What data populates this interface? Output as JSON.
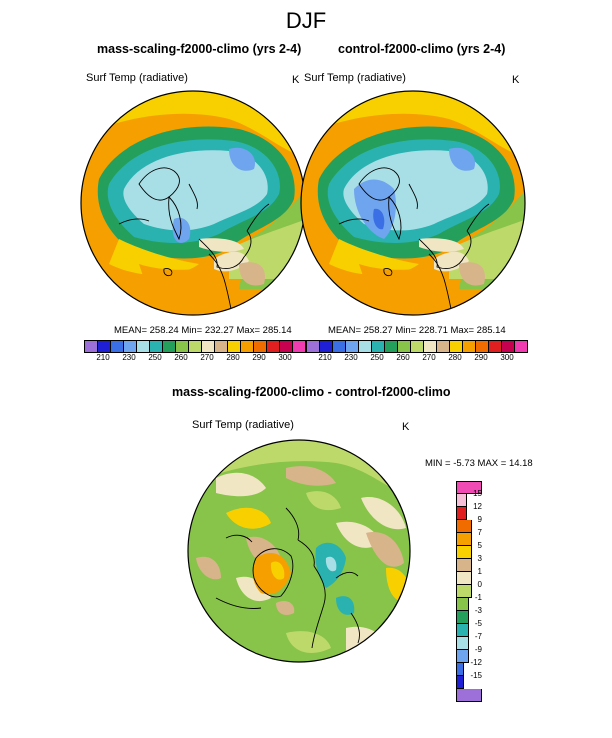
{
  "title": "DJF",
  "panels": [
    {
      "title": "mass-scaling-f2000-climo (yrs 2-4)",
      "variable": "Surf Temp (radiative)",
      "units": "K",
      "stats": "MEAN= 258.24  Min= 232.27  Max= 285.14"
    },
    {
      "title": "control-f2000-climo (yrs 2-4)",
      "variable": "Surf Temp (radiative)",
      "units": "K",
      "stats": "MEAN= 258.27  Min= 228.71  Max= 285.14"
    }
  ],
  "diff_panel": {
    "title": "mass-scaling-f2000-climo - control-f2000-climo",
    "variable": "Surf Temp (radiative)",
    "units": "K",
    "stats": "MIN =  -5.73 MAX =  14.18"
  },
  "abs_colorbar": {
    "colors": [
      "#9c6fd9",
      "#1f1fd6",
      "#3b6fe6",
      "#6fa4ee",
      "#a8dfe6",
      "#2ab2b0",
      "#24a05c",
      "#88c34a",
      "#bdd96a",
      "#f0e6c4",
      "#d8b48a",
      "#f8d000",
      "#f5a000",
      "#f06c00",
      "#e02020",
      "#c80050",
      "#f03cb0"
    ],
    "tick_labels": [
      "210",
      "230",
      "250",
      "260",
      "270",
      "280",
      "290",
      "300"
    ]
  },
  "diff_colorbar": {
    "colors": [
      "#f04ab4",
      "#f6c0d8",
      "#e02020",
      "#f06c00",
      "#f5a000",
      "#f8d000",
      "#d8b48a",
      "#f0e6c4",
      "#bdd96a",
      "#88c34a",
      "#24a05c",
      "#2ab2b0",
      "#a8dfe6",
      "#6fa4ee",
      "#3b6fe6",
      "#1f1fd6",
      "#9c6fd9"
    ],
    "tick_labels": [
      "15",
      "12",
      "9",
      "7",
      "5",
      "3",
      "1",
      "0",
      "-1",
      "-3",
      "-5",
      "-7",
      "-9",
      "-12",
      "-15"
    ]
  }
}
